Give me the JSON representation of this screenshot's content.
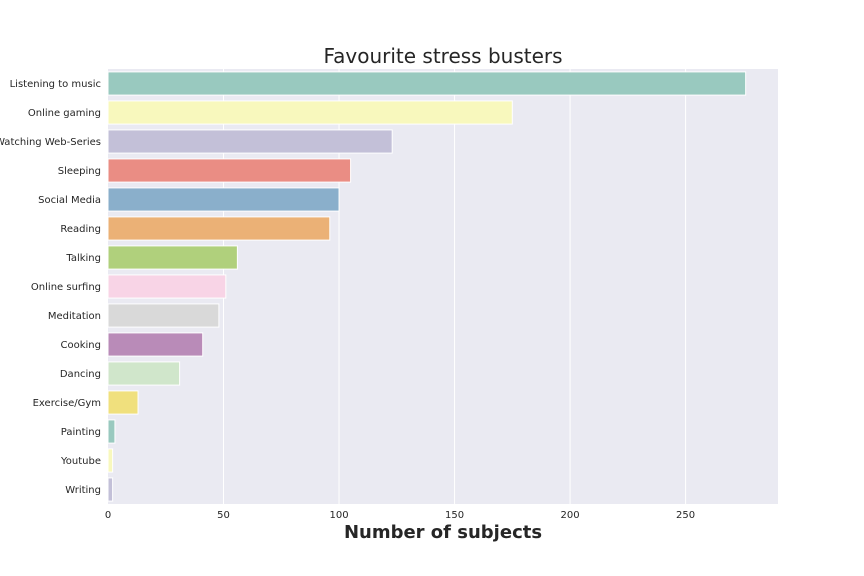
{
  "chart_data": {
    "type": "bar",
    "orientation": "horizontal",
    "title": "Favourite stress busters",
    "xlabel": "Number of subjects",
    "ylabel": "",
    "xlim": [
      0,
      290
    ],
    "xticks": [
      0,
      50,
      100,
      150,
      200,
      250
    ],
    "grid": true,
    "categories": [
      "Listening to music",
      "Online gaming",
      "Watching Web-Series",
      "Sleeping",
      "Social Media",
      "Reading",
      "Talking",
      "Online surfing",
      "Meditation",
      "Cooking",
      "Dancing",
      "Exercise/Gym",
      "Painting",
      "Youtube",
      "Writing"
    ],
    "values": [
      276,
      175,
      123,
      105,
      100,
      96,
      56,
      51,
      48,
      41,
      31,
      13,
      3,
      2,
      2
    ],
    "colors": [
      "#99c9bf",
      "#f8f8bd",
      "#c3c0d8",
      "#ea8d84",
      "#8aafcb",
      "#ebb176",
      "#b0d07c",
      "#f8d4e6",
      "#d9d9d9",
      "#b98bb8",
      "#d0e6cb",
      "#f0e07d",
      "#99c9bf",
      "#f8f8bd",
      "#c3c0d8"
    ]
  }
}
